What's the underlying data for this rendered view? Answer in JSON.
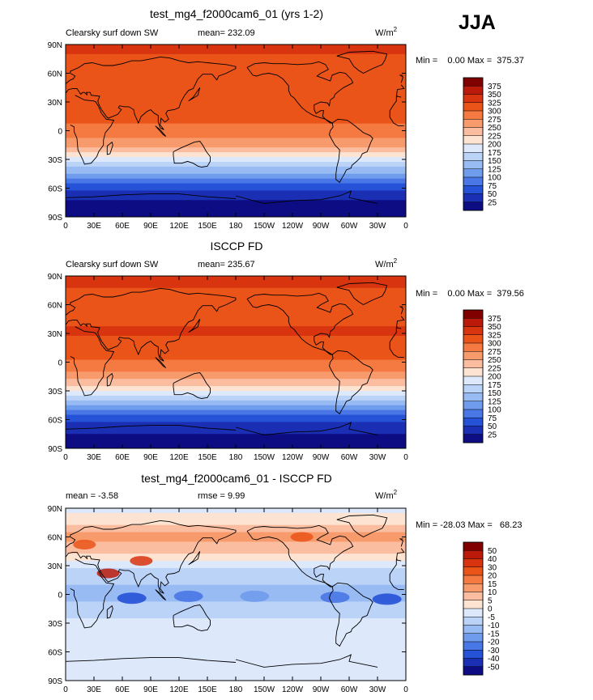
{
  "season": "JJA",
  "chart_data": [
    {
      "type": "heatmap",
      "title": "test_mg4_f2000cam6_01 (yrs 1-2)",
      "field": "Clearsky surf down SW",
      "stat_text": "mean= 232.09",
      "units": "W/m",
      "units_exp": "2",
      "minmax_text": "Min =    0.00 Max =  375.37",
      "mean": 232.09,
      "min": 0.0,
      "max": 375.37,
      "lat_ticks": [
        "90N",
        "60N",
        "30N",
        "0",
        "30S",
        "60S",
        "90S"
      ],
      "lon_ticks": [
        "0",
        "30E",
        "60E",
        "90E",
        "120E",
        "150E",
        "180",
        "150W",
        "120W",
        "90W",
        "60W",
        "30W",
        "0"
      ],
      "colorbar": {
        "levels": [
          "375",
          "350",
          "325",
          "300",
          "275",
          "250",
          "225",
          "200",
          "175",
          "150",
          "125",
          "100",
          "75",
          "50",
          "25"
        ],
        "colors": [
          "#800000",
          "#bb1a0b",
          "#d8340f",
          "#ea5418",
          "#f47a42",
          "#f89b6c",
          "#fbbda0",
          "#fde4d2",
          "#dde9fb",
          "#bcd3f8",
          "#98bbf3",
          "#6f9cec",
          "#4977e6",
          "#2552d7",
          "#1a2fb4",
          "#0d0c82"
        ]
      },
      "zonal_profile": [
        {
          "lat": -90,
          "v": 10
        },
        {
          "lat": -75,
          "v": 22
        },
        {
          "lat": -60,
          "v": 55
        },
        {
          "lat": -45,
          "v": 120
        },
        {
          "lat": -30,
          "v": 190
        },
        {
          "lat": -20,
          "v": 240
        },
        {
          "lat": -10,
          "v": 272
        },
        {
          "lat": 0,
          "v": 292
        },
        {
          "lat": 15,
          "v": 310
        },
        {
          "lat": 30,
          "v": 322
        },
        {
          "lat": 45,
          "v": 318
        },
        {
          "lat": 60,
          "v": 300
        },
        {
          "lat": 75,
          "v": 318
        },
        {
          "lat": 90,
          "v": 345
        }
      ]
    },
    {
      "type": "heatmap",
      "title": "ISCCP FD",
      "field": "Clearsky surf down SW",
      "stat_text": "mean= 235.67",
      "units": "W/m",
      "units_exp": "2",
      "minmax_text": "Min =    0.00 Max =  379.56",
      "mean": 235.67,
      "min": 0.0,
      "max": 379.56,
      "lat_ticks": [
        "90N",
        "60N",
        "30N",
        "0",
        "30S",
        "60S",
        "90S"
      ],
      "lon_ticks": [
        "0",
        "30E",
        "60E",
        "90E",
        "120E",
        "150E",
        "180",
        "150W",
        "120W",
        "90W",
        "60W",
        "30W",
        "0"
      ],
      "colorbar": {
        "levels": [
          "375",
          "350",
          "325",
          "300",
          "275",
          "250",
          "225",
          "200",
          "175",
          "150",
          "125",
          "100",
          "75",
          "50",
          "25"
        ],
        "colors": [
          "#800000",
          "#bb1a0b",
          "#d8340f",
          "#ea5418",
          "#f47a42",
          "#f89b6c",
          "#fbbda0",
          "#fde4d2",
          "#dde9fb",
          "#bcd3f8",
          "#98bbf3",
          "#6f9cec",
          "#4977e6",
          "#2552d7",
          "#1a2fb4",
          "#0d0c82"
        ]
      },
      "zonal_profile": [
        {
          "lat": -90,
          "v": 10
        },
        {
          "lat": -75,
          "v": 24
        },
        {
          "lat": -60,
          "v": 58
        },
        {
          "lat": -45,
          "v": 122
        },
        {
          "lat": -30,
          "v": 195
        },
        {
          "lat": -20,
          "v": 245
        },
        {
          "lat": -10,
          "v": 278
        },
        {
          "lat": 0,
          "v": 296
        },
        {
          "lat": 15,
          "v": 314
        },
        {
          "lat": 30,
          "v": 328
        },
        {
          "lat": 45,
          "v": 322
        },
        {
          "lat": 60,
          "v": 302
        },
        {
          "lat": 75,
          "v": 322
        },
        {
          "lat": 90,
          "v": 350
        }
      ]
    },
    {
      "type": "heatmap",
      "title": "test_mg4_f2000cam6_01 - ISCCP FD",
      "field": "",
      "stat_text": "mean =   -3.58",
      "stat_text2": "rmse =    9.99",
      "units": "W/m",
      "units_exp": "2",
      "minmax_text": "Min = -28.03 Max =   68.23",
      "mean": -3.58,
      "rmse": 9.99,
      "min": -28.03,
      "max": 68.23,
      "lat_ticks": [
        "90N",
        "60N",
        "30N",
        "0",
        "30S",
        "60S",
        "90S"
      ],
      "lon_ticks": [
        "0",
        "30E",
        "60E",
        "90E",
        "120E",
        "150E",
        "180",
        "150W",
        "120W",
        "90W",
        "60W",
        "30W",
        "0"
      ],
      "colorbar": {
        "levels": [
          "50",
          "40",
          "30",
          "20",
          "15",
          "10",
          "5",
          "0",
          "-5",
          "-10",
          "-15",
          "-20",
          "-30",
          "-40",
          "-50"
        ],
        "colors": [
          "#800000",
          "#bb1a0b",
          "#d8340f",
          "#ea5418",
          "#f47a42",
          "#f89b6c",
          "#fbbda0",
          "#fde4d2",
          "#dde9fb",
          "#bcd3f8",
          "#98bbf3",
          "#6f9cec",
          "#4977e6",
          "#2552d7",
          "#1a2fb4",
          "#0d0c82"
        ]
      },
      "zonal_profile": [
        {
          "lat": -90,
          "v": -3
        },
        {
          "lat": -75,
          "v": -3
        },
        {
          "lat": -60,
          "v": -3
        },
        {
          "lat": -45,
          "v": -3
        },
        {
          "lat": -30,
          "v": -4
        },
        {
          "lat": -15,
          "v": -8
        },
        {
          "lat": 0,
          "v": -12
        },
        {
          "lat": 15,
          "v": -9
        },
        {
          "lat": 30,
          "v": -4
        },
        {
          "lat": 45,
          "v": 6
        },
        {
          "lat": 60,
          "v": 12
        },
        {
          "lat": 75,
          "v": 4
        },
        {
          "lat": 90,
          "v": -2
        }
      ]
    }
  ]
}
